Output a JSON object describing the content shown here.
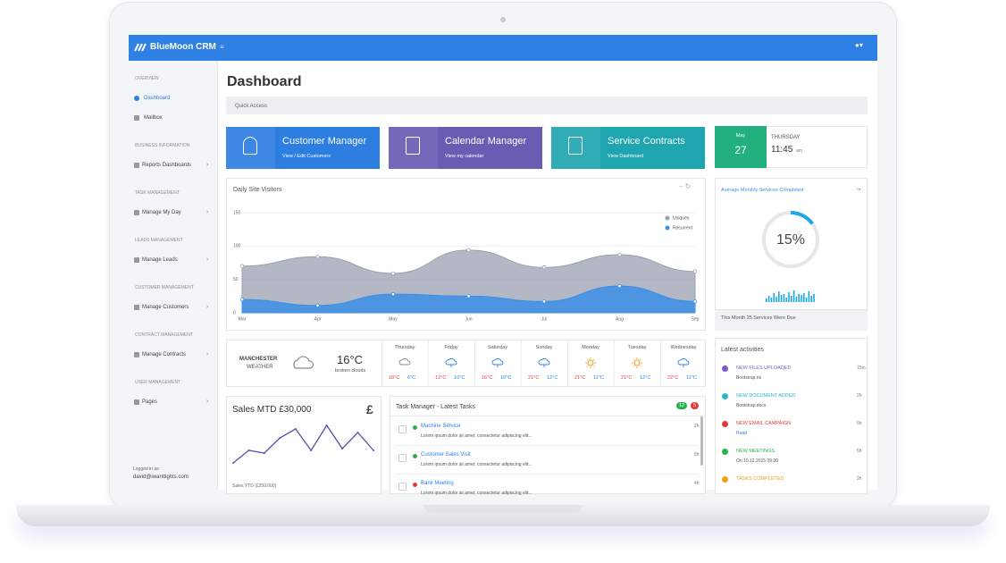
{
  "header": {
    "brand": "BlueMoon CRM"
  },
  "sidebar": {
    "sections": [
      {
        "title": "OVERVIEW",
        "items": [
          "Dashboard",
          "Mailbox"
        ]
      },
      {
        "title": "BUSINESS INFORMATION",
        "items": [
          "Reports Dashboards"
        ]
      },
      {
        "title": "TASK MANAGEMENT",
        "items": [
          "Manage My Day"
        ]
      },
      {
        "title": "LEADS MANAGEMENT",
        "items": [
          "Manage Leads"
        ]
      },
      {
        "title": "CUSTOMER MANAGEMENT",
        "items": [
          "Manage Customers"
        ]
      },
      {
        "title": "CONTRACT MANAGEMENT",
        "items": [
          "Manage Contracts"
        ]
      },
      {
        "title": "USER MANAGEMENT",
        "items": [
          "Pages"
        ]
      }
    ],
    "footer_label": "Logged in as:",
    "footer_user": "david@iwanttights.com"
  },
  "page": {
    "title": "Dashboard",
    "breadcrumb": "Quick Access"
  },
  "tiles": [
    {
      "title": "Customer Manager",
      "link": "View / Edit Customers",
      "color": "#2e7de1"
    },
    {
      "title": "Calendar Manager",
      "link": "View my calendar",
      "color": "#6a5bb3"
    },
    {
      "title": "Service Contracts",
      "link": "View Dashboard",
      "color": "#1fa5b0"
    }
  ],
  "date_tile": {
    "month": "May",
    "day": "27",
    "weekday": "THURSDAY",
    "time": "11:45",
    "ampm": "am",
    "color": "#22b07d"
  },
  "visitors": {
    "type": "area",
    "title": "Daily Site Visitors",
    "categories": [
      "Mar",
      "Apr",
      "May",
      "Jun",
      "Jul",
      "Aug",
      "Sep"
    ],
    "series": [
      {
        "name": "Uniques",
        "color": "#9aa0b0",
        "values": [
          70,
          84,
          59,
          94,
          68,
          87,
          62
        ]
      },
      {
        "name": "Recurrent",
        "color": "#3c8ee6",
        "values": [
          20,
          11,
          28,
          25,
          17,
          40,
          17
        ]
      }
    ],
    "ylim": [
      0,
      150
    ],
    "yticks": [
      0,
      50,
      100,
      150
    ],
    "grid": true
  },
  "services": {
    "title": "Average Monthly Services Completed",
    "value": 15,
    "value_label": "15%",
    "footer": "This Month 25 Services Were Due"
  },
  "weather": {
    "city": "MANCHESTER",
    "label": "WEATHER",
    "temp": "16°C",
    "desc": "broken clouds",
    "forecast": [
      {
        "day": "Thursday",
        "high": "18°C",
        "low": "6°C"
      },
      {
        "day": "Friday",
        "high": "12°C",
        "low": "10°C"
      },
      {
        "day": "Saturday",
        "high": "16°C",
        "low": "10°C"
      },
      {
        "day": "Sunday",
        "high": "21°C",
        "low": "12°C"
      },
      {
        "day": "Monday",
        "high": "21°C",
        "low": "11°C"
      },
      {
        "day": "Tuesday",
        "high": "21°C",
        "low": "12°C"
      },
      {
        "day": "Wednesday",
        "high": "22°C",
        "low": "11°C"
      }
    ]
  },
  "sales": {
    "title": "Sales MTD £30,000",
    "symbol": "£",
    "values": [
      10,
      24,
      21,
      38,
      48,
      24,
      52,
      26,
      44,
      24
    ],
    "footer": "Sales YTD (£250,000)"
  },
  "tasks": {
    "title": "Task Manager - Latest Tasks",
    "badge_done": "12",
    "badge_open": "5",
    "items": [
      {
        "name": "Machine Service",
        "desc": "Lorem ipsum dolor sit amet, consectetur adipiscing elit...",
        "time": "2h",
        "color": "#2bb24c"
      },
      {
        "name": "Customer Sales Visit",
        "desc": "Lorem ipsum dolor sit amet, consectetur adipiscing elit...",
        "time": "5h",
        "color": "#2bb24c"
      },
      {
        "name": "Bank Meeting",
        "desc": "Lorem ipsum dolor sit amet, consectetur adipiscing elit...",
        "time": "4h",
        "color": "#e23b3b"
      }
    ]
  },
  "activities": {
    "title": "Latest activities",
    "items": [
      {
        "title": "NEW FILES UPLOADED",
        "sub": "Bootstrap.rls",
        "time": "15m",
        "color": "#7a5cc9"
      },
      {
        "title": "NEW DOCUMENT ADDED",
        "sub": "Bootstrap.docx",
        "time": "2h",
        "color": "#2fb3c8"
      },
      {
        "title": "NEW EMAIL CAMPAIGN",
        "sub": "Read",
        "time": "5h",
        "color": "#e23b3b"
      },
      {
        "title": "NEW MEETINGS",
        "sub": "On 10.12.2015 09:30",
        "time": "5h",
        "color": "#2bb24c"
      },
      {
        "title": "TASKS COMPLETED",
        "time": "2h",
        "color": "#f39c12"
      }
    ]
  }
}
